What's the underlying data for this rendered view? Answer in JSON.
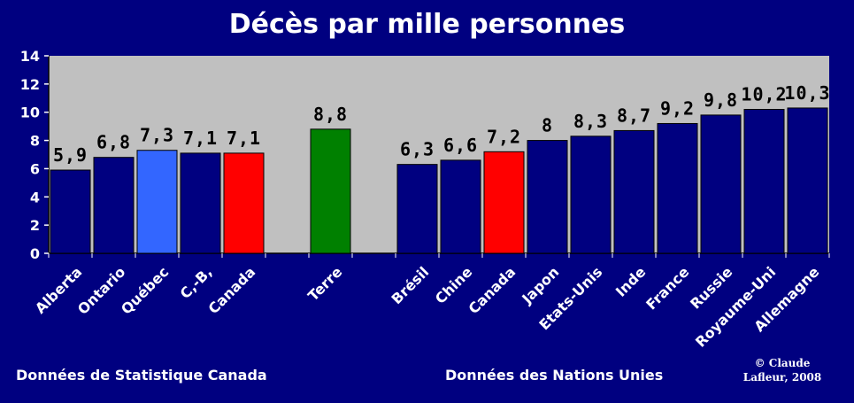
{
  "chart_data": {
    "type": "bar",
    "title": "Décès par mille personnes",
    "categories": [
      "Alberta",
      "Ontario",
      "Québec",
      "C,-B,",
      "Canada",
      "Terre",
      "Brésil",
      "Chine",
      "Canada",
      "Japon",
      "Etats-Unis",
      "Inde",
      "France",
      "Russie",
      "Royaume-Uni",
      "Allemagne"
    ],
    "values": [
      5.9,
      6.8,
      7.3,
      7.1,
      7.1,
      8.8,
      6.3,
      6.6,
      7.2,
      8,
      8.3,
      8.7,
      9.2,
      9.8,
      10.2,
      10.3
    ],
    "value_labels": [
      "5,9",
      "6,8",
      "7,3",
      "7,1",
      "7,1",
      "8,8",
      "6,3",
      "6,6",
      "7,2",
      "8",
      "8,3",
      "8,7",
      "9,2",
      "9,8",
      "10,2",
      "10,3"
    ],
    "bar_colors": [
      "#000080",
      "#000080",
      "#3366ff",
      "#000080",
      "#ff0000",
      "#008000",
      "#000080",
      "#000080",
      "#ff0000",
      "#000080",
      "#000080",
      "#000080",
      "#000080",
      "#000080",
      "#000080",
      "#000080"
    ],
    "yticks": [
      "0",
      "2",
      "4",
      "6",
      "8",
      "10",
      "12",
      "14"
    ],
    "ylim": [
      0,
      14
    ],
    "grid": false,
    "plot_background": "#c0c0c0"
  },
  "footer": {
    "left_source": "Données de Statistique Canada",
    "right_source": "Données des Nations Unies",
    "credit_line1": "© Claude",
    "credit_line2": "Lafleur, 2008"
  },
  "colors": {
    "background": "#000080",
    "text": "#ffffff"
  }
}
